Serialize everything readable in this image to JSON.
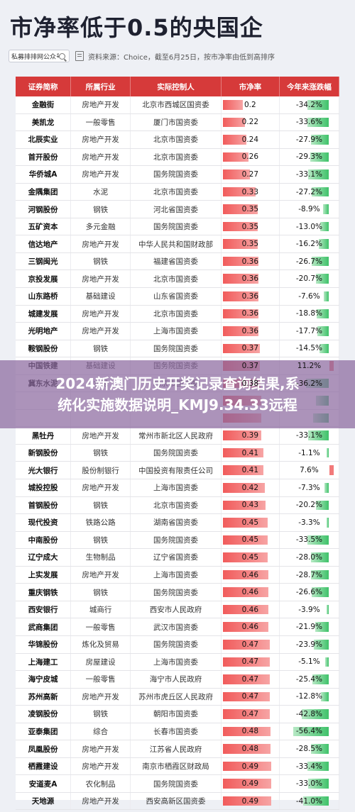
{
  "title": "市净率低于0.5的央国企",
  "search": {
    "text": "私募排排网公众号"
  },
  "source_text": "资料来源：Choice，截至6月25日，按市净率由低到高排序",
  "headers": [
    "证券简称",
    "所属行业",
    "实际控制人",
    "市净率",
    "今年来涨跌幅"
  ],
  "rows": [
    {
      "name": "金融街",
      "industry": "房地产开发",
      "controller": "北京市西城区国资委",
      "pb": "0.2",
      "pbv": 0.2,
      "chg": "-34.2%",
      "chgv": -34.2
    },
    {
      "name": "美凯龙",
      "industry": "一般零售",
      "controller": "厦门市国资委",
      "pb": "0.22",
      "pbv": 0.22,
      "chg": "-33.6%",
      "chgv": -33.6
    },
    {
      "name": "北辰实业",
      "industry": "房地产开发",
      "controller": "北京市国资委",
      "pb": "0.24",
      "pbv": 0.24,
      "chg": "-27.9%",
      "chgv": -27.9
    },
    {
      "name": "首开股份",
      "industry": "房地产开发",
      "controller": "北京市国资委",
      "pb": "0.26",
      "pbv": 0.26,
      "chg": "-29.3%",
      "chgv": -29.3
    },
    {
      "name": "华侨城A",
      "industry": "房地产开发",
      "controller": "国务院国资委",
      "pb": "0.27",
      "pbv": 0.27,
      "chg": "-33.1%",
      "chgv": -33.1
    },
    {
      "name": "金隅集团",
      "industry": "水泥",
      "controller": "北京市国资委",
      "pb": "0.33",
      "pbv": 0.33,
      "chg": "-27.2%",
      "chgv": -27.2
    },
    {
      "name": "河钢股份",
      "industry": "钢铁",
      "controller": "河北省国资委",
      "pb": "0.35",
      "pbv": 0.35,
      "chg": "-8.9%",
      "chgv": -8.9
    },
    {
      "name": "五矿资本",
      "industry": "多元金融",
      "controller": "国务院国资委",
      "pb": "0.35",
      "pbv": 0.35,
      "chg": "-13.0%",
      "chgv": -13.0
    },
    {
      "name": "信达地产",
      "industry": "房地产开发",
      "controller": "中华人民共和国财政部",
      "pb": "0.35",
      "pbv": 0.35,
      "chg": "-16.2%",
      "chgv": -16.2
    },
    {
      "name": "三钢闽光",
      "industry": "钢铁",
      "controller": "福建省国资委",
      "pb": "0.36",
      "pbv": 0.36,
      "chg": "-26.7%",
      "chgv": -26.7
    },
    {
      "name": "京投发展",
      "industry": "房地产开发",
      "controller": "北京市国资委",
      "pb": "0.36",
      "pbv": 0.36,
      "chg": "-20.7%",
      "chgv": -20.7
    },
    {
      "name": "山东路桥",
      "industry": "基础建设",
      "controller": "山东省国资委",
      "pb": "0.36",
      "pbv": 0.36,
      "chg": "-7.6%",
      "chgv": -7.6
    },
    {
      "name": "城建发展",
      "industry": "房地产开发",
      "controller": "北京市国资委",
      "pb": "0.36",
      "pbv": 0.36,
      "chg": "-18.8%",
      "chgv": -18.8
    },
    {
      "name": "光明地产",
      "industry": "房地产开发",
      "controller": "上海市国资委",
      "pb": "0.36",
      "pbv": 0.36,
      "chg": "-17.7%",
      "chgv": -17.7
    },
    {
      "name": "鞍钢股份",
      "industry": "钢铁",
      "controller": "国务院国资委",
      "pb": "0.37",
      "pbv": 0.37,
      "chg": "-14.5%",
      "chgv": -14.5
    },
    {
      "name": "中国铁建",
      "industry": "基础建设",
      "controller": "国务院国资委",
      "pb": "0.37",
      "pbv": 0.37,
      "chg": "11.2%",
      "chgv": 11.2
    },
    {
      "name": "冀东水泥",
      "industry": "水泥",
      "controller": "北京市国资委",
      "pb": "0.38",
      "pbv": 0.38,
      "chg": "-36.2%",
      "chgv": -36.2
    },
    {
      "name": "",
      "industry": "",
      "controller": "",
      "pb": "",
      "pbv": 0.39,
      "chg": "",
      "chgv": -20.0
    },
    {
      "name": "",
      "industry": "",
      "controller": "",
      "pb": "",
      "pbv": 0.39,
      "chg": "",
      "chgv": -25.0
    },
    {
      "name": "黑牡丹",
      "industry": "房地产开发",
      "controller": "常州市新北区人民政府",
      "pb": "0.39",
      "pbv": 0.39,
      "chg": "-33.1%",
      "chgv": -33.1
    },
    {
      "name": "新钢股份",
      "industry": "钢铁",
      "controller": "国务院国资委",
      "pb": "0.41",
      "pbv": 0.41,
      "chg": "-1.1%",
      "chgv": -1.1
    },
    {
      "name": "光大银行",
      "industry": "股份制银行",
      "controller": "中国投资有限责任公司",
      "pb": "0.41",
      "pbv": 0.41,
      "chg": "7.6%",
      "chgv": 7.6
    },
    {
      "name": "城投控股",
      "industry": "房地产开发",
      "controller": "上海市国资委",
      "pb": "0.42",
      "pbv": 0.42,
      "chg": "-7.3%",
      "chgv": -7.3
    },
    {
      "name": "首钢股份",
      "industry": "钢铁",
      "controller": "北京市国资委",
      "pb": "0.43",
      "pbv": 0.43,
      "chg": "-20.2%",
      "chgv": -20.2
    },
    {
      "name": "现代投资",
      "industry": "铁路公路",
      "controller": "湖南省国资委",
      "pb": "0.45",
      "pbv": 0.45,
      "chg": "-3.3%",
      "chgv": -3.3
    },
    {
      "name": "中南股份",
      "industry": "钢铁",
      "controller": "国务院国资委",
      "pb": "0.45",
      "pbv": 0.45,
      "chg": "-33.5%",
      "chgv": -33.5
    },
    {
      "name": "辽宁成大",
      "industry": "生物制品",
      "controller": "辽宁省国资委",
      "pb": "0.45",
      "pbv": 0.45,
      "chg": "-28.0%",
      "chgv": -28.0
    },
    {
      "name": "上实发展",
      "industry": "房地产开发",
      "controller": "上海市国资委",
      "pb": "0.46",
      "pbv": 0.46,
      "chg": "-28.7%",
      "chgv": -28.7
    },
    {
      "name": "重庆钢铁",
      "industry": "钢铁",
      "controller": "国务院国资委",
      "pb": "0.46",
      "pbv": 0.46,
      "chg": "-26.6%",
      "chgv": -26.6
    },
    {
      "name": "西安银行",
      "industry": "城商行",
      "controller": "西安市人民政府",
      "pb": "0.46",
      "pbv": 0.46,
      "chg": "-3.9%",
      "chgv": -3.9
    },
    {
      "name": "武商集团",
      "industry": "一般零售",
      "controller": "武汉市国资委",
      "pb": "0.46",
      "pbv": 0.46,
      "chg": "-21.9%",
      "chgv": -21.9
    },
    {
      "name": "华锦股份",
      "industry": "炼化及贸易",
      "controller": "国务院国资委",
      "pb": "0.47",
      "pbv": 0.47,
      "chg": "-23.9%",
      "chgv": -23.9
    },
    {
      "name": "上海建工",
      "industry": "房屋建设",
      "controller": "上海市国资委",
      "pb": "0.47",
      "pbv": 0.47,
      "chg": "-5.1%",
      "chgv": -5.1
    },
    {
      "name": "海宁皮城",
      "industry": "一般零售",
      "controller": "海宁市人民政府",
      "pb": "0.47",
      "pbv": 0.47,
      "chg": "-25.4%",
      "chgv": -25.4
    },
    {
      "name": "苏州高新",
      "industry": "房地产开发",
      "controller": "苏州市虎丘区人民政府",
      "pb": "0.47",
      "pbv": 0.47,
      "chg": "-12.8%",
      "chgv": -12.8
    },
    {
      "name": "凌钢股份",
      "industry": "钢铁",
      "controller": "朝阳市国资委",
      "pb": "0.47",
      "pbv": 0.47,
      "chg": "-42.8%",
      "chgv": -42.8
    },
    {
      "name": "亚泰集团",
      "industry": "综合",
      "controller": "长春市国资委",
      "pb": "0.48",
      "pbv": 0.48,
      "chg": "-56.4%",
      "chgv": -56.4
    },
    {
      "name": "凤凰股份",
      "industry": "房地产开发",
      "controller": "江苏省人民政府",
      "pb": "0.48",
      "pbv": 0.48,
      "chg": "-28.5%",
      "chgv": -28.5
    },
    {
      "name": "栖霞建设",
      "industry": "房地产开发",
      "controller": "南京市栖霞区财政局",
      "pb": "0.49",
      "pbv": 0.49,
      "chg": "-33.4%",
      "chgv": -33.4
    },
    {
      "name": "安道麦A",
      "industry": "农化制品",
      "controller": "国务院国资委",
      "pb": "0.49",
      "pbv": 0.49,
      "chg": "-33.0%",
      "chgv": -33.0
    },
    {
      "name": "天地源",
      "industry": "房地产开发",
      "controller": "西安高新区国资委",
      "pb": "0.49",
      "pbv": 0.49,
      "chg": "-41.0%",
      "chgv": -41.0
    }
  ],
  "banner": {
    "line1": "2024新澳门历史开奖记录查询结果,系",
    "line2": "统化实施数据说明_KMJ9.34.33远程"
  }
}
